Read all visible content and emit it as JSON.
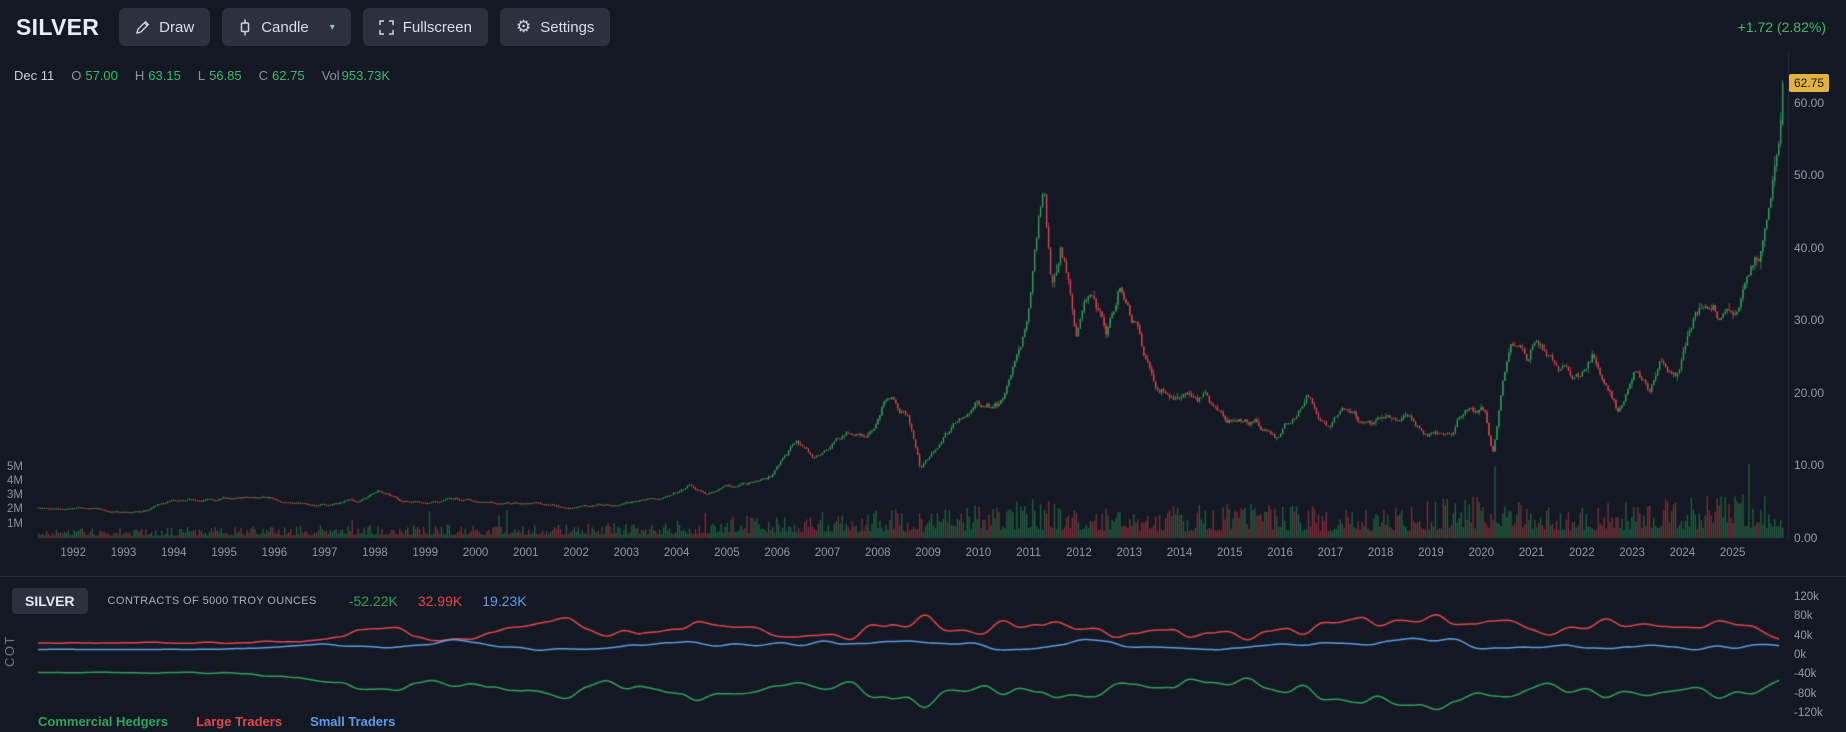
{
  "toolbar": {
    "symbol": "SILVER",
    "draw_label": "Draw",
    "candle_label": "Candle",
    "fullscreen_label": "Fullscreen",
    "settings_label": "Settings",
    "change_text": "+1.72 (2.82%)"
  },
  "ohlc_bar": {
    "date": "Dec 11",
    "open_label": "O",
    "open": "57.00",
    "high_label": "H",
    "high": "63.15",
    "low_label": "L",
    "low": "56.85",
    "close_label": "C",
    "close": "62.75",
    "vol_label": "Vol",
    "volume": "953.73K"
  },
  "main_chart": {
    "last_price": "62.75",
    "price_axis_labels": [
      "60.00",
      "50.00",
      "40.00",
      "30.00",
      "20.00",
      "10.00",
      "0.00"
    ],
    "volume_axis_labels": [
      "5M",
      "4M",
      "3M",
      "2M",
      "1M"
    ],
    "year_labels": [
      "1992",
      "1993",
      "1994",
      "1995",
      "1996",
      "1997",
      "1998",
      "1999",
      "2000",
      "2001",
      "2002",
      "2003",
      "2004",
      "2005",
      "2006",
      "2007",
      "2008",
      "2009",
      "2010",
      "2011",
      "2012",
      "2013",
      "2014",
      "2015",
      "2016",
      "2017",
      "2018",
      "2019",
      "2020",
      "2021",
      "2022",
      "2023",
      "2024",
      "2025"
    ]
  },
  "cot_panel": {
    "symbol": "SILVER",
    "subtitle": "CONTRACTS OF 5000 TROY OUNCES",
    "side_label": "COT",
    "values": {
      "commercial": "-52.22K",
      "large": "32.99K",
      "small": "19.23K"
    },
    "axis_labels": [
      "120k",
      "80k",
      "40k",
      "0k",
      "-40k",
      "-80k",
      "-120k"
    ],
    "legend": [
      {
        "id": "commercial-hedgers",
        "label": "Commercial Hedgers",
        "color": "#2fa35e"
      },
      {
        "id": "large-traders",
        "label": "Large Traders",
        "color": "#e0484e"
      },
      {
        "id": "small-traders",
        "label": "Small Traders",
        "color": "#5e9de6"
      }
    ]
  },
  "colors": {
    "background": "#141823",
    "toolbar_button": "#2b313e",
    "green": "#3eb86b",
    "candle_up": "#2fa55c",
    "candle_down": "#dc4a50",
    "cot_green": "#2fa35e",
    "cot_red": "#e0484e",
    "cot_blue": "#5e9de6",
    "last_price_bg": "#e3b341",
    "grid": "rgba(141,151,171,0.10)"
  },
  "chart_data": {
    "type": "candlestick",
    "title": "SILVER",
    "time_range": [
      1991.3,
      2026.1
    ],
    "candles_end": 2025.98,
    "num_candles": 880,
    "price_axis": {
      "min": 0,
      "max": 60,
      "step": 10
    },
    "last_candle": {
      "open": 57.0,
      "high": 63.15,
      "low": 56.85,
      "close": 62.75
    },
    "price_anchors": [
      [
        1991.3,
        4.2
      ],
      [
        1992.0,
        4.1
      ],
      [
        1992.5,
        3.9
      ],
      [
        1993.0,
        3.7
      ],
      [
        1993.3,
        3.6
      ],
      [
        1994.0,
        5.1
      ],
      [
        1995.0,
        5.4
      ],
      [
        1996.0,
        5.2
      ],
      [
        1997.0,
        4.8
      ],
      [
        1997.7,
        5.3
      ],
      [
        1998.1,
        6.9
      ],
      [
        1998.6,
        5.2
      ],
      [
        1999.5,
        5.2
      ],
      [
        2000.5,
        5.0
      ],
      [
        2001.5,
        4.4
      ],
      [
        2001.9,
        4.2
      ],
      [
        2003.0,
        4.7
      ],
      [
        2003.8,
        5.8
      ],
      [
        2004.3,
        7.6
      ],
      [
        2004.6,
        6.2
      ],
      [
        2005.2,
        7.0
      ],
      [
        2005.9,
        8.5
      ],
      [
        2006.4,
        13.8
      ],
      [
        2006.7,
        10.8
      ],
      [
        2007.2,
        13.3
      ],
      [
        2007.9,
        14.6
      ],
      [
        2008.2,
        19.8
      ],
      [
        2008.6,
        16.8
      ],
      [
        2008.85,
        9.3
      ],
      [
        2009.3,
        13.2
      ],
      [
        2009.95,
        18.0
      ],
      [
        2010.5,
        18.6
      ],
      [
        2010.95,
        28.5
      ],
      [
        2011.3,
        48.5
      ],
      [
        2011.45,
        34.5
      ],
      [
        2011.65,
        41.5
      ],
      [
        2011.95,
        28.5
      ],
      [
        2012.2,
        33.0
      ],
      [
        2012.55,
        27.2
      ],
      [
        2012.8,
        34.2
      ],
      [
        2013.2,
        28.8
      ],
      [
        2013.55,
        19.5
      ],
      [
        2014.1,
        20.0
      ],
      [
        2014.55,
        19.3
      ],
      [
        2014.9,
        15.7
      ],
      [
        2015.4,
        16.4
      ],
      [
        2015.95,
        13.9
      ],
      [
        2016.55,
        20.3
      ],
      [
        2016.95,
        15.9
      ],
      [
        2017.3,
        18.4
      ],
      [
        2017.6,
        15.6
      ],
      [
        2017.95,
        17.0
      ],
      [
        2018.5,
        16.3
      ],
      [
        2018.9,
        14.1
      ],
      [
        2019.4,
        14.9
      ],
      [
        2019.7,
        19.3
      ],
      [
        2020.05,
        17.8
      ],
      [
        2020.22,
        12.0
      ],
      [
        2020.6,
        28.8
      ],
      [
        2020.9,
        23.8
      ],
      [
        2021.1,
        27.8
      ],
      [
        2021.45,
        25.8
      ],
      [
        2021.95,
        22.3
      ],
      [
        2022.2,
        26.0
      ],
      [
        2022.7,
        18.2
      ],
      [
        2023.05,
        24.0
      ],
      [
        2023.35,
        20.8
      ],
      [
        2023.6,
        25.0
      ],
      [
        2023.9,
        22.6
      ],
      [
        2024.2,
        29.5
      ],
      [
        2024.45,
        31.8
      ],
      [
        2024.8,
        30.2
      ],
      [
        2025.05,
        30.0
      ],
      [
        2025.3,
        33.5
      ],
      [
        2025.5,
        37.0
      ],
      [
        2025.7,
        43.0
      ],
      [
        2025.85,
        48.5
      ],
      [
        2025.91,
        53.0
      ],
      [
        2025.98,
        62.0
      ]
    ],
    "volume_anchors": [
      [
        1991.3,
        0.35
      ],
      [
        1998,
        0.5
      ],
      [
        2003,
        0.55
      ],
      [
        2006,
        0.9
      ],
      [
        2009,
        1.1
      ],
      [
        2011,
        1.5
      ],
      [
        2013,
        1.15
      ],
      [
        2016,
        1.3
      ],
      [
        2018,
        1.1
      ],
      [
        2020,
        1.7
      ],
      [
        2022,
        1.25
      ],
      [
        2024,
        1.5
      ],
      [
        2026,
        1.8
      ]
    ],
    "cot": {
      "points": 600,
      "axis": {
        "max": 120,
        "min": -120,
        "step": 40
      },
      "amp_anchors": [
        [
          1991.3,
          4
        ],
        [
          1995,
          8
        ],
        [
          1996.5,
          30
        ],
        [
          1998,
          55
        ],
        [
          2001,
          58
        ],
        [
          2005,
          62
        ],
        [
          2008,
          70
        ],
        [
          2012,
          64
        ],
        [
          2016,
          68
        ],
        [
          2020,
          72
        ],
        [
          2026,
          68
        ]
      ],
      "last_values": {
        "commercial": -52.22,
        "large": 32.99,
        "small": 19.23
      }
    }
  }
}
